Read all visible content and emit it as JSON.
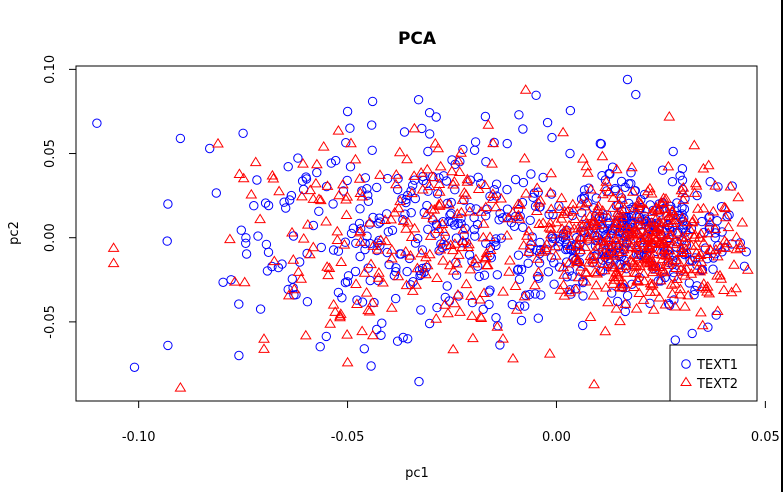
{
  "chart_data": {
    "type": "scatter",
    "title": "PCA",
    "xlabel": "pc1",
    "ylabel": "pc2",
    "xlim": [
      -0.115,
      0.048
    ],
    "ylim": [
      -0.097,
      0.102
    ],
    "x_ticks": [
      {
        "value": -0.1,
        "label": "-0.10"
      },
      {
        "value": -0.05,
        "label": "-0.05"
      },
      {
        "value": 0.0,
        "label": "0.00"
      },
      {
        "value": 0.05,
        "label": "0.05"
      }
    ],
    "y_ticks": [
      {
        "value": -0.05,
        "label": "-0.05"
      },
      {
        "value": 0.0,
        "label": "0.00"
      },
      {
        "value": 0.05,
        "label": "0.05"
      },
      {
        "value": 0.1,
        "label": "0.10"
      }
    ],
    "legend_position": "bottom-right",
    "series": [
      {
        "name": "TEXT1",
        "marker": "circle",
        "color": "#0000FF",
        "n_points": 650,
        "seed": 17,
        "clusters": [
          {
            "cx": 0.018,
            "cy": 0.0,
            "sx": 0.013,
            "sy": 0.018,
            "weight": 0.55
          },
          {
            "cx": -0.03,
            "cy": 0.005,
            "sx": 0.025,
            "sy": 0.033,
            "weight": 0.45
          }
        ],
        "fixed_points": [
          [
            -0.11,
            0.068
          ],
          [
            -0.101,
            -0.077
          ],
          [
            -0.093,
            -0.064
          ],
          [
            -0.076,
            -0.07
          ],
          [
            -0.09,
            0.059
          ],
          [
            -0.083,
            0.053
          ],
          [
            -0.044,
            0.081
          ],
          [
            -0.033,
            0.082
          ],
          [
            0.017,
            0.094
          ],
          [
            0.019,
            0.085
          ],
          [
            -0.093,
            0.02
          ],
          [
            -0.075,
            0.062
          ],
          [
            -0.05,
            0.075
          ],
          [
            -0.017,
            0.072
          ],
          [
            -0.009,
            0.073
          ],
          [
            0.038,
            0.0
          ],
          [
            0.045,
            -0.017
          ],
          [
            0.044,
            -0.003
          ],
          [
            -0.042,
            -0.058
          ],
          [
            -0.046,
            -0.066
          ]
        ]
      },
      {
        "name": "TEXT2",
        "marker": "triangle",
        "color": "#FF0000",
        "n_points": 650,
        "seed": 91,
        "clusters": [
          {
            "cx": 0.022,
            "cy": -0.003,
            "sx": 0.013,
            "sy": 0.019,
            "weight": 0.65
          },
          {
            "cx": -0.03,
            "cy": -0.003,
            "sx": 0.021,
            "sy": 0.03,
            "weight": 0.35
          }
        ],
        "fixed_points": [
          [
            -0.106,
            -0.006
          ],
          [
            -0.106,
            -0.015
          ],
          [
            -0.09,
            -0.089
          ],
          [
            -0.081,
            0.056
          ],
          [
            -0.07,
            -0.066
          ],
          [
            -0.07,
            -0.06
          ],
          [
            -0.06,
            -0.058
          ],
          [
            -0.05,
            -0.074
          ],
          [
            0.027,
            0.072
          ],
          [
            0.033,
            0.055
          ],
          [
            0.038,
            0.031
          ],
          [
            0.044,
            -0.006
          ],
          [
            0.043,
            -0.03
          ],
          [
            0.035,
            -0.052
          ],
          [
            -0.077,
            -0.026
          ],
          [
            -0.063,
            -0.013
          ],
          [
            -0.072,
            0.045
          ],
          [
            -0.068,
            0.037
          ],
          [
            -0.034,
            0.065
          ],
          [
            -0.029,
            0.056
          ]
        ]
      }
    ]
  }
}
